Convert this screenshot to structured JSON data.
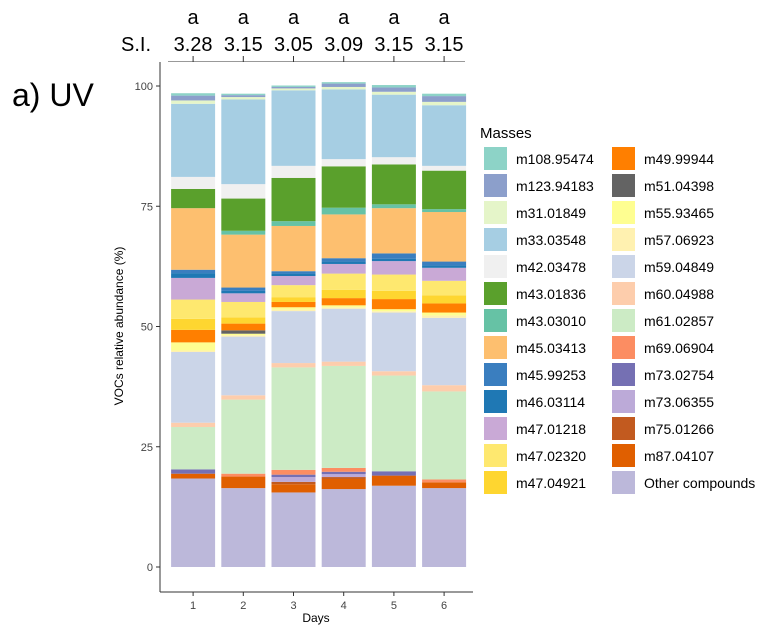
{
  "chart_data": {
    "type": "bar",
    "stacked": true,
    "panel_label": "a) UV",
    "xlabel": "Days",
    "ylabel": "VOCs relative abundance (%)",
    "ylim": [
      0,
      100
    ],
    "yticks": [
      0,
      25,
      50,
      75,
      100
    ],
    "grid": false,
    "legend_placement": "right",
    "legend_title": "Masses",
    "categories": [
      "1",
      "2",
      "3",
      "4",
      "5",
      "6"
    ],
    "top_annotations": {
      "letters": [
        "a",
        "a",
        "a",
        "a",
        "a",
        "a"
      ],
      "si_label": "S.I.",
      "si_values": [
        "3.28",
        "3.15",
        "3.05",
        "3.09",
        "3.15",
        "3.15"
      ]
    },
    "stack_order_bottom_to_top": [
      "Other compounds",
      "m87.04107",
      "m75.01266",
      "m73.06355",
      "m73.02754",
      "m69.06904",
      "m61.02857",
      "m60.04988",
      "m59.04849",
      "m57.06923",
      "m55.93465",
      "m51.04398",
      "m49.99944",
      "m47.04921",
      "m47.02320",
      "m47.01218",
      "m46.03114",
      "m45.99253",
      "m45.03413",
      "m43.03010",
      "m43.01836",
      "m42.03478",
      "m33.03548",
      "m31.01849",
      "m123.94183",
      "m108.95474"
    ],
    "series": [
      {
        "name": "m108.95474",
        "color": "#8dd3c7",
        "values": [
          0.5,
          0.3,
          0.3,
          0.3,
          0.5,
          0.5
        ]
      },
      {
        "name": "m123.94183",
        "color": "#8c9fcb",
        "values": [
          1.0,
          0.4,
          0.3,
          0.7,
          0.9,
          1.2
        ]
      },
      {
        "name": "m31.01849",
        "color": "#e5f5c9",
        "values": [
          0.7,
          0.5,
          0.4,
          0.5,
          0.6,
          0.7
        ]
      },
      {
        "name": "m33.03548",
        "color": "#a6cee3",
        "values": [
          15.2,
          17.6,
          15.7,
          14.5,
          13.0,
          12.6
        ]
      },
      {
        "name": "m42.03478",
        "color": "#f0f0f0",
        "values": [
          2.5,
          3.0,
          2.5,
          1.5,
          1.5,
          1.0
        ]
      },
      {
        "name": "m43.01836",
        "color": "#5aa02c",
        "values": [
          4.0,
          6.7,
          9.0,
          8.6,
          8.3,
          8.0
        ]
      },
      {
        "name": "m43.03010",
        "color": "#66c2a5",
        "values": [
          0.0,
          0.8,
          1.0,
          1.4,
          0.8,
          0.6
        ]
      },
      {
        "name": "m45.03413",
        "color": "#fdbf6f",
        "values": [
          12.8,
          11.0,
          9.4,
          9.1,
          9.4,
          10.3
        ]
      },
      {
        "name": "m45.99253",
        "color": "#3a7ebf",
        "values": [
          0.7,
          0.7,
          0.5,
          0.7,
          1.1,
          0.8
        ]
      },
      {
        "name": "m46.03114",
        "color": "#1f78b4",
        "values": [
          1.0,
          0.5,
          0.5,
          0.5,
          0.5,
          0.5
        ]
      },
      {
        "name": "m47.01218",
        "color": "#c9a9d6",
        "values": [
          4.5,
          1.8,
          1.9,
          2.0,
          2.8,
          2.7
        ]
      },
      {
        "name": "m47.02320",
        "color": "#fee86f",
        "values": [
          4.0,
          3.2,
          2.5,
          3.4,
          3.4,
          3.0
        ]
      },
      {
        "name": "m47.04921",
        "color": "#fed630",
        "values": [
          2.3,
          1.3,
          1.0,
          1.7,
          1.7,
          1.7
        ]
      },
      {
        "name": "m49.99944",
        "color": "#ff7f00",
        "values": [
          2.6,
          1.4,
          1.1,
          1.5,
          2.1,
          1.9
        ]
      },
      {
        "name": "m51.04398",
        "color": "#636363",
        "values": [
          0.0,
          0.7,
          0.0,
          0.0,
          0.0,
          0.0
        ]
      },
      {
        "name": "m55.93465",
        "color": "#fefe91",
        "values": [
          1.7,
          0.3,
          0.5,
          0.4,
          0.4,
          0.6
        ]
      },
      {
        "name": "m57.06923",
        "color": "#fff1b0",
        "values": [
          0.3,
          0.3,
          0.3,
          0.3,
          0.3,
          0.5
        ]
      },
      {
        "name": "m59.04849",
        "color": "#cbd5e8",
        "values": [
          14.7,
          12.2,
          10.8,
          11.0,
          12.2,
          14.0
        ]
      },
      {
        "name": "m60.04988",
        "color": "#fdcdac",
        "values": [
          0.9,
          0.9,
          0.9,
          0.9,
          0.9,
          1.3
        ]
      },
      {
        "name": "m61.02857",
        "color": "#ccebc5",
        "values": [
          8.8,
          15.4,
          21.3,
          21.2,
          19.9,
          18.3
        ]
      },
      {
        "name": "m69.06904",
        "color": "#fc8d62",
        "values": [
          0.0,
          0.6,
          1.0,
          0.8,
          0.0,
          0.6
        ]
      },
      {
        "name": "m73.02754",
        "color": "#7570b3",
        "values": [
          0.9,
          0.0,
          0.5,
          0.5,
          0.9,
          0.0
        ]
      },
      {
        "name": "m73.06355",
        "color": "#bcaad8",
        "values": [
          0.0,
          0.0,
          1.0,
          0.6,
          0.0,
          0.0
        ]
      },
      {
        "name": "m75.01266",
        "color": "#c25a1f",
        "values": [
          0.0,
          0.0,
          0.5,
          0.4,
          0.0,
          0.0
        ]
      },
      {
        "name": "m87.04107",
        "color": "#e05f00",
        "values": [
          1.0,
          2.4,
          1.7,
          2.1,
          2.1,
          1.2
        ]
      },
      {
        "name": "Other compounds",
        "color": "#bcb8da",
        "values": [
          18.4,
          16.4,
          15.5,
          16.2,
          16.9,
          16.4
        ]
      }
    ]
  }
}
